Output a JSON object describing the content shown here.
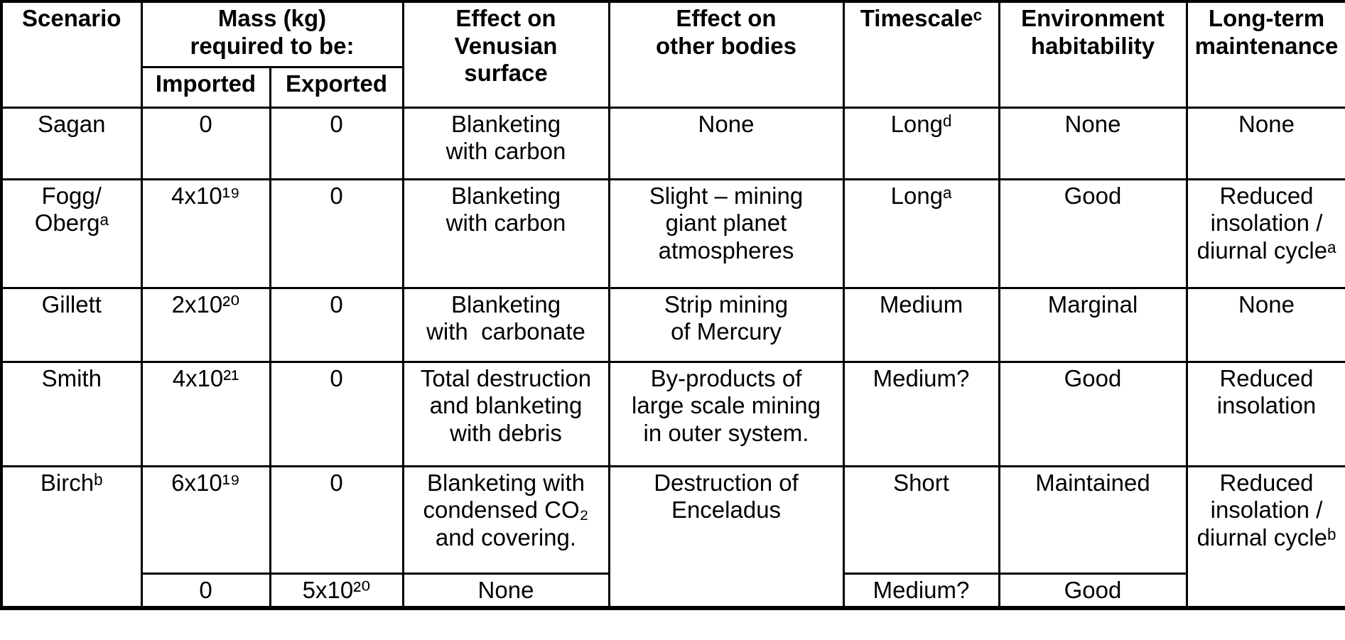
{
  "table": {
    "header": {
      "scenario": "Scenario",
      "mass_group": "Mass (kg)\nrequired to be:",
      "imported": "Imported",
      "exported": "Exported",
      "effect_venus": "Effect on\nVenusian\nsurface",
      "effect_other": "Effect on\nother bodies",
      "timescale": "Timescaleᶜ",
      "environment": "Environment\nhabitability",
      "maintenance": "Long-term\nmaintenance"
    },
    "rows": {
      "sagan": {
        "scenario": "Sagan",
        "imported": "0",
        "exported": "0",
        "effect_venus": "Blanketing\nwith carbon",
        "effect_other": "None",
        "timescale": "Longᵈ",
        "environment": "None",
        "maintenance": "None"
      },
      "fogg": {
        "scenario": "Fogg/\nObergᵃ",
        "imported": "4x10¹⁹",
        "exported": "0",
        "effect_venus": "Blanketing\nwith carbon",
        "effect_other": "Slight – mining\ngiant planet\natmospheres",
        "timescale": "Longᵃ",
        "environment": "Good",
        "maintenance": "Reduced\ninsolation /\ndiurnal cycleᵃ"
      },
      "gillett": {
        "scenario": "Gillett",
        "imported": "2x10²⁰",
        "exported": "0",
        "effect_venus": "Blanketing\nwith  carbonate",
        "effect_other": "Strip mining\nof Mercury",
        "timescale": "Medium",
        "environment": "Marginal",
        "maintenance": "None"
      },
      "smith": {
        "scenario": "Smith",
        "imported": "4x10²¹",
        "exported": "0",
        "effect_venus": "Total destruction\nand blanketing\nwith debris",
        "effect_other": "By-products of\nlarge scale mining\nin outer system.",
        "timescale": "Medium?",
        "environment": "Good",
        "maintenance": "Reduced\ninsolation"
      },
      "birch": {
        "scenario": "Birchᵇ",
        "effect_other": "Destruction of\nEnceladus",
        "maintenance": "Reduced\ninsolation /\ndiurnal cycleᵇ",
        "sub1": {
          "imported": "6x10¹⁹",
          "exported": "0",
          "effect_venus": "Blanketing with\ncondensed CO₂\nand covering.",
          "timescale": "Short",
          "environment": "Maintained"
        },
        "sub2": {
          "imported": "0",
          "exported": "5x10²⁰",
          "effect_venus": "None",
          "timescale": "Medium?",
          "environment": "Good"
        }
      }
    }
  }
}
